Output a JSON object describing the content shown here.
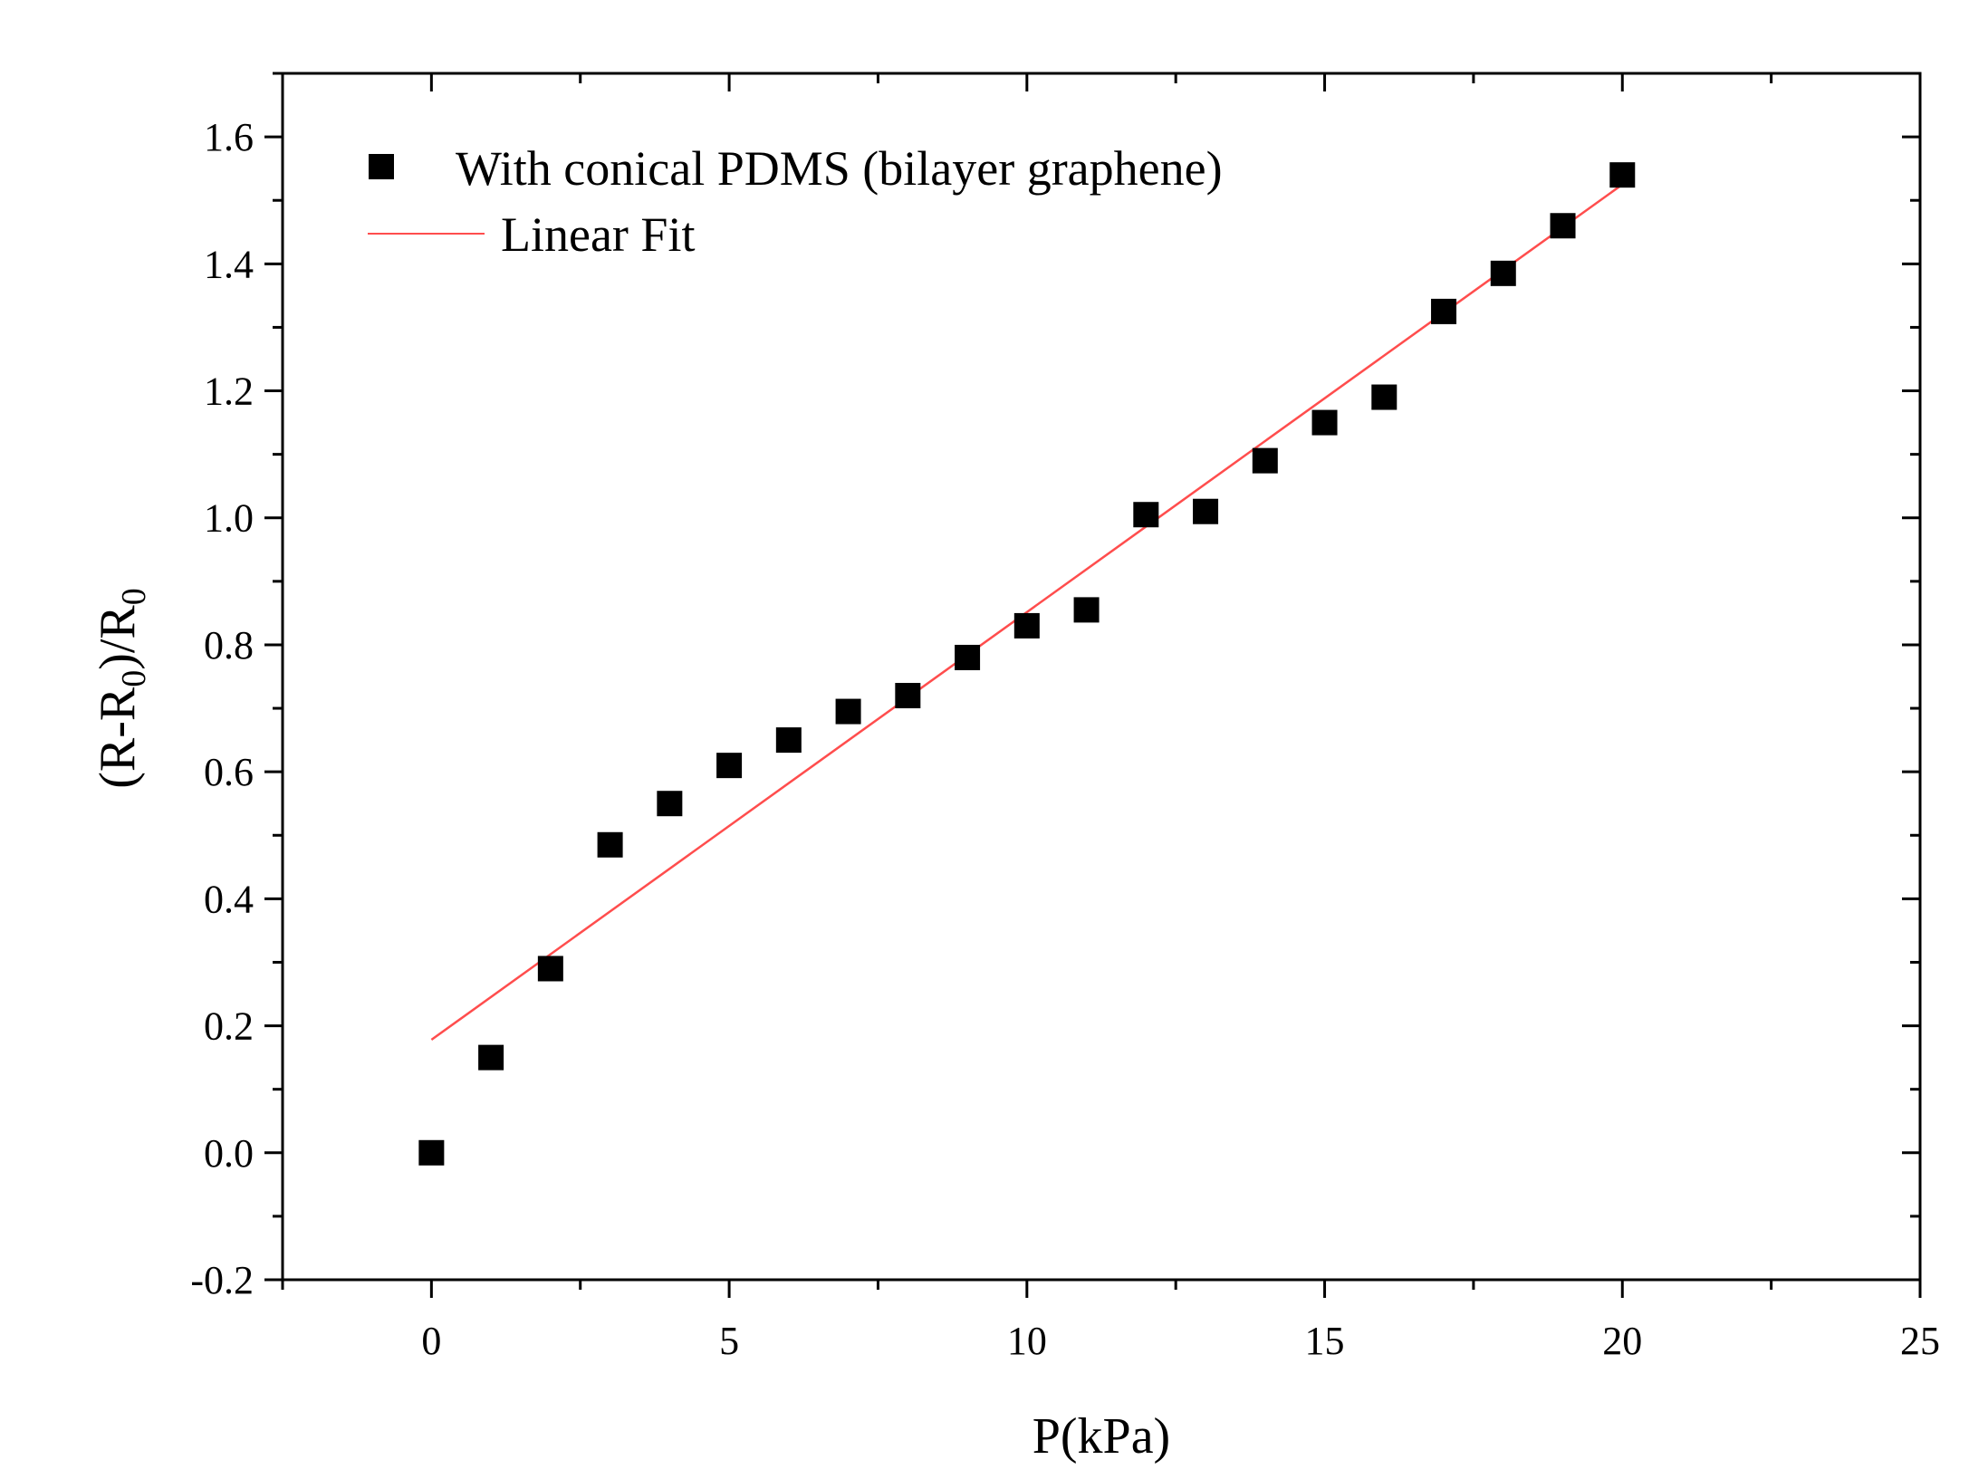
{
  "chart_data": {
    "type": "scatter",
    "title": "",
    "xlabel": "P(kPa)",
    "ylabel": "(R-R0)/R0",
    "ylabel_parts": [
      "(R-R",
      "0",
      ")/R",
      "0"
    ],
    "xlim": [
      -2.5,
      25
    ],
    "ylim": [
      -0.2,
      1.7
    ],
    "xticks": [
      0,
      5,
      10,
      15,
      20,
      25
    ],
    "xtick_labels": [
      "0",
      "5",
      "10",
      "15",
      "20",
      "25"
    ],
    "yticks": [
      -0.2,
      0.0,
      0.2,
      0.4,
      0.6,
      0.8,
      1.0,
      1.2,
      1.4,
      1.6
    ],
    "ytick_labels": [
      "-0.2",
      "0.0",
      "0.2",
      "0.4",
      "0.6",
      "0.8",
      "1.0",
      "1.2",
      "1.4",
      "1.6"
    ],
    "grid": false,
    "legend_position": "top-left",
    "series": [
      {
        "name": "With conical PDMS (bilayer graphene)",
        "kind": "scatter",
        "marker": "square",
        "color": "#000000",
        "x": [
          0,
          1,
          2,
          3,
          4,
          5,
          6,
          7,
          8,
          9,
          10,
          11,
          12,
          13,
          14,
          15,
          16,
          17,
          18,
          19,
          20
        ],
        "y": [
          0.0,
          0.15,
          0.29,
          0.485,
          0.55,
          0.61,
          0.65,
          0.695,
          0.72,
          0.78,
          0.83,
          0.855,
          1.005,
          1.01,
          1.09,
          1.15,
          1.19,
          1.325,
          1.385,
          1.46,
          1.54
        ]
      },
      {
        "name": "Linear Fit",
        "kind": "line",
        "color": "#ff4d4d",
        "x": [
          0,
          20
        ],
        "y": [
          0.178,
          1.525
        ]
      }
    ]
  }
}
